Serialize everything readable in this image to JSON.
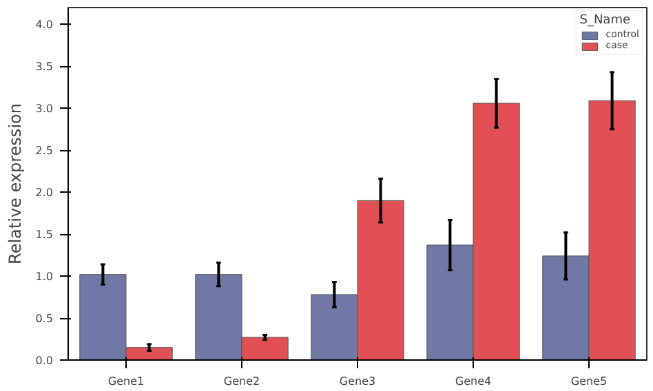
{
  "chart_data": {
    "type": "bar",
    "ylabel": "Relative expression",
    "legend_title": "S_Name",
    "legend": "top right",
    "grid": false,
    "categories": [
      "Gene1",
      "Gene2",
      "Gene3",
      "Gene4",
      "Gene5"
    ],
    "ylim": [
      0,
      4.2
    ],
    "yticks": [
      {
        "value": 0,
        "label": "0.0"
      },
      {
        "value": 0.5,
        "label": "0.5"
      },
      {
        "value": 1,
        "label": "1.0"
      },
      {
        "value": 1.5,
        "label": "1.5"
      },
      {
        "value": 2,
        "label": "2.0"
      },
      {
        "value": 2.5,
        "label": "2.5"
      },
      {
        "value": 3,
        "label": "3.0"
      },
      {
        "value": 3.5,
        "label": "3.5"
      },
      {
        "value": 4,
        "label": "4.0"
      }
    ],
    "series": [
      {
        "name": "control",
        "color": "#7079a6",
        "values": [
          1.02,
          1.02,
          0.78,
          1.37,
          1.24
        ],
        "errors": [
          0.12,
          0.14,
          0.15,
          0.3,
          0.28
        ]
      },
      {
        "name": "case",
        "color": "#e05055",
        "values": [
          0.15,
          0.27,
          1.9,
          3.06,
          3.09
        ],
        "errors": [
          0.04,
          0.03,
          0.26,
          0.29,
          0.34
        ]
      }
    ]
  }
}
